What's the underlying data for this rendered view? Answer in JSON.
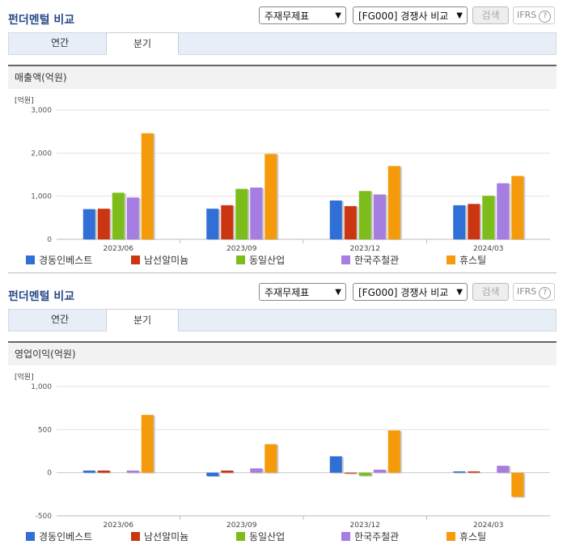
{
  "sections": [
    {
      "title": "펀더멘털 비교",
      "select1": "주재무제표",
      "select2": "[FG000] 경쟁사 비교",
      "search_label": "검색",
      "ifrs_label": "IFRS",
      "tabs": [
        "연간",
        "분기"
      ],
      "active_tab": "분기",
      "subtitle": "매출액(억원)",
      "unit": "[억원]"
    },
    {
      "title": "펀더멘털 비교",
      "select1": "주재무제표",
      "select2": "[FG000] 경쟁사 비교",
      "search_label": "검색",
      "ifrs_label": "IFRS",
      "tabs": [
        "연간",
        "분기"
      ],
      "active_tab": "분기",
      "subtitle": "영업이익(억원)",
      "unit": "[억원]"
    }
  ],
  "colors": [
    "#2f6fd6",
    "#cc3511",
    "#7cbd1c",
    "#a67de0",
    "#f59a0a"
  ],
  "chart_data": [
    {
      "type": "bar",
      "categories": [
        "2023/06",
        "2023/09",
        "2023/12",
        "2024/03"
      ],
      "series": [
        {
          "name": "경동인베스트",
          "values": [
            700,
            710,
            900,
            790
          ]
        },
        {
          "name": "남선알미늄",
          "values": [
            710,
            790,
            770,
            820
          ]
        },
        {
          "name": "동일산업",
          "values": [
            1080,
            1170,
            1120,
            1010
          ]
        },
        {
          "name": "한국주철관",
          "values": [
            970,
            1200,
            1040,
            1300
          ]
        },
        {
          "name": "휴스틸",
          "values": [
            2460,
            1980,
            1700,
            1470
          ]
        }
      ],
      "ylim": [
        0,
        3000
      ],
      "yticks": [
        0,
        1000,
        2000,
        3000
      ],
      "ytick_labels": [
        "0",
        "1,000",
        "2,000",
        "3,000"
      ],
      "legend": "bottom"
    },
    {
      "type": "bar",
      "categories": [
        "2023/06",
        "2023/09",
        "2023/12",
        "2024/03"
      ],
      "series": [
        {
          "name": "경동인베스트",
          "values": [
            25,
            -40,
            190,
            15
          ]
        },
        {
          "name": "남선알미늄",
          "values": [
            25,
            25,
            -10,
            15
          ]
        },
        {
          "name": "동일산업",
          "values": [
            0,
            0,
            -35,
            0
          ]
        },
        {
          "name": "한국주철관",
          "values": [
            25,
            50,
            35,
            80
          ]
        },
        {
          "name": "휴스틸",
          "values": [
            670,
            330,
            490,
            -280
          ]
        }
      ],
      "ylim": [
        -500,
        1000
      ],
      "yticks": [
        -500,
        0,
        500,
        1000
      ],
      "ytick_labels": [
        "-500",
        "0",
        "500",
        "1,000"
      ],
      "legend": "bottom"
    }
  ]
}
